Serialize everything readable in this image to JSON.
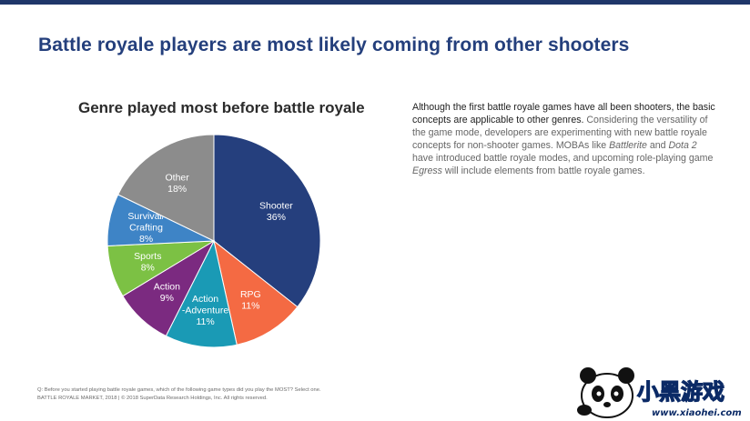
{
  "colors": {
    "topbar": "#1f3669",
    "title": "#243f7c"
  },
  "slide": {
    "title": "Battle royale players are most likely coming from other shooters"
  },
  "chart_data": {
    "type": "pie",
    "title": "Genre played most before battle royale",
    "start_angle_deg": 0,
    "direction": "clockwise",
    "slices": [
      {
        "label_lines": [
          "Shooter"
        ],
        "value": 36,
        "value_label": "36%",
        "color": "#253f7d"
      },
      {
        "label_lines": [
          "RPG"
        ],
        "value": 11,
        "value_label": "11%",
        "color": "#f46a43"
      },
      {
        "label_lines": [
          "Action",
          "-Adventure"
        ],
        "value": 11,
        "value_label": "11%",
        "color": "#1a9ab5"
      },
      {
        "label_lines": [
          "Action"
        ],
        "value": 9,
        "value_label": "9%",
        "color": "#7b2a80"
      },
      {
        "label_lines": [
          "Sports"
        ],
        "value": 8,
        "value_label": "8%",
        "color": "#7cc144"
      },
      {
        "label_lines": [
          "Survival/",
          "Crafting"
        ],
        "value": 8,
        "value_label": "8%",
        "color": "#3e84c6"
      },
      {
        "label_lines": [
          "Other"
        ],
        "value": 18,
        "value_label": "18%",
        "color": "#8c8c8c"
      }
    ]
  },
  "description": {
    "lead": "Although the first battle royale games have all been shooters, the basic concepts are applicable to other genres.",
    "part1": " Considering the versatility of the game mode, developers are experimenting with new battle royale concepts for non-shooter games. MOBAs like ",
    "game1": "Battlerite",
    "and": " and ",
    "game2": "Dota 2",
    "part2": " have introduced battle royale modes, and upcoming role-playing game ",
    "game3": "Egress",
    "part3": " will include elements from battle royale games."
  },
  "footer": {
    "question": "Q: Before you started playing battle royale games, which of the following game types did you play the MOST? Select one.",
    "source": "BATTLE ROYALE MARKET, 2018  |  © 2018 SuperData Research Holdings, Inc. All rights reserved."
  },
  "watermark": {
    "brand_text": "小黑游戏",
    "url": "www.xiaohei.com"
  }
}
